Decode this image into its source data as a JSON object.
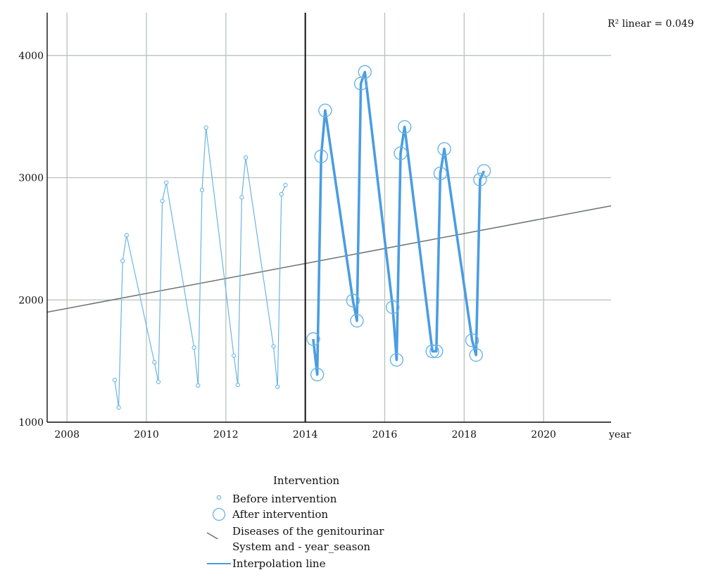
{
  "chart_data": {
    "type": "scatter",
    "xlabel": "year",
    "ylabel": "",
    "xlim": [
      2007.5,
      2021.7
    ],
    "ylim": [
      1000,
      4350
    ],
    "x_ticks": [
      "2008",
      "2010",
      "2012",
      "2014",
      "2016",
      "2018",
      "2020"
    ],
    "y_ticks": [
      "1000",
      "2000",
      "3000",
      "4000"
    ],
    "grid": true,
    "intervention_x": 2014.0,
    "annotation": "R² linear = 0.049",
    "fit_line": {
      "x": [
        2007.5,
        2021.7
      ],
      "y": [
        1900,
        2770
      ]
    },
    "colors": {
      "series": "#6ab4e6",
      "interp": "#4a9de2",
      "fit": "#6a7570",
      "grid": "#b8c2bc",
      "axis": "#111111"
    },
    "series": [
      {
        "name": "Before intervention",
        "x": [
          2009.2,
          2009.3,
          2009.4,
          2009.5,
          2010.2,
          2010.3,
          2010.4,
          2010.5,
          2011.2,
          2011.3,
          2011.4,
          2011.5,
          2012.2,
          2012.3,
          2012.4,
          2012.5,
          2013.2,
          2013.3,
          2013.4,
          2013.5
        ],
        "y": [
          1345,
          1120,
          2320,
          2530,
          1490,
          1330,
          2810,
          2960,
          1610,
          1300,
          2900,
          3410,
          1545,
          1305,
          2840,
          3165,
          1620,
          1290,
          2865,
          2940
        ]
      },
      {
        "name": "After intervention",
        "x": [
          2014.2,
          2014.3,
          2014.4,
          2014.5,
          2015.2,
          2015.3,
          2015.4,
          2015.5,
          2016.2,
          2016.3,
          2016.4,
          2016.5,
          2017.2,
          2017.3,
          2017.4,
          2017.5,
          2018.2,
          2018.3,
          2018.4,
          2018.5
        ],
        "y": [
          1680,
          1390,
          3175,
          3550,
          1995,
          1830,
          3770,
          3865,
          1940,
          1510,
          3200,
          3415,
          1580,
          1580,
          3035,
          3235,
          1670,
          1550,
          2985,
          3055
        ]
      }
    ]
  },
  "legend": {
    "title": "Intervention",
    "items": {
      "before": "Before intervention",
      "after": "After intervention",
      "fit": "Diseases of the genitourinar\nSystem and - year_season",
      "interp": "Interpolation line"
    }
  }
}
